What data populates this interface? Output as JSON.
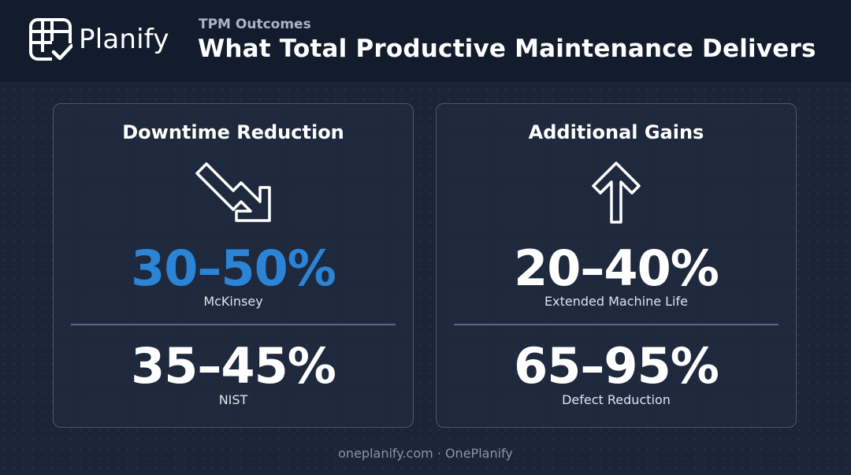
{
  "brand": {
    "name": "Planify",
    "logo_icon": "calendar-check-icon"
  },
  "header": {
    "eyebrow": "TPM Outcomes",
    "title": "What Total Productive Maintenance Delivers"
  },
  "cards": [
    {
      "title": "Downtime Reduction",
      "icon": "trend-down-arrow-icon",
      "stats": [
        {
          "value": "30–50%",
          "source": "McKinsey",
          "color": "#2b84d6"
        },
        {
          "value": "35–45%",
          "source": "NIST",
          "color": "#ffffff"
        }
      ]
    },
    {
      "title": "Additional Gains",
      "icon": "arrow-up-icon",
      "stats": [
        {
          "value": "20–40%",
          "source": "Extended Machine Life",
          "color": "#ffffff"
        },
        {
          "value": "65–95%",
          "source": "Defect Reduction",
          "color": "#ffffff"
        }
      ]
    }
  ],
  "footer": {
    "text": "oneplanify.com · OnePlanify"
  }
}
